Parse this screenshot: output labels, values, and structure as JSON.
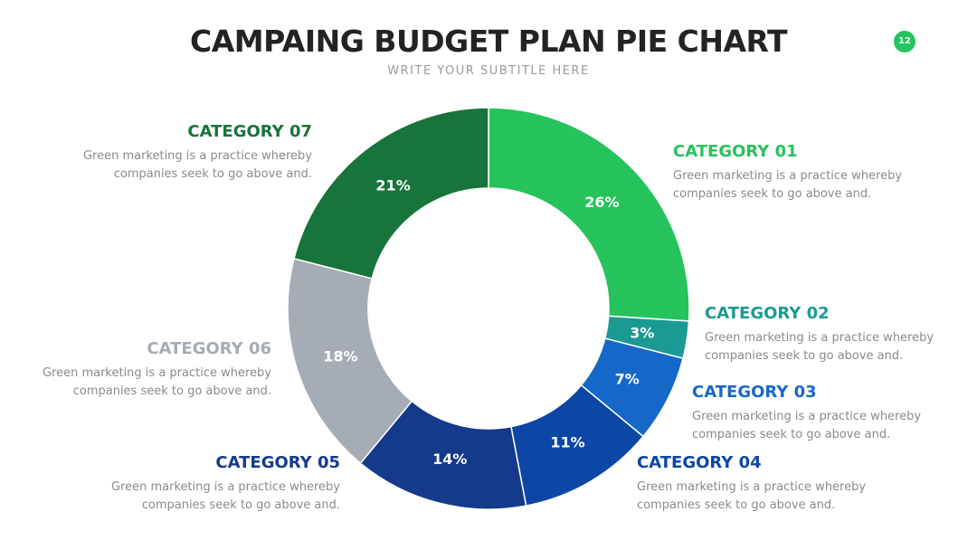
{
  "header": {
    "title": "CAMPAING BUDGET PLAN PIE CHART",
    "subtitle": "WRITE YOUR SUBTITLE HERE",
    "page_number": "12"
  },
  "chart_data": {
    "type": "pie",
    "title": "CAMPAING BUDGET PLAN PIE CHART",
    "subtitle": "WRITE YOUR SUBTITLE HERE",
    "start": "top, clockwise",
    "slices": [
      {
        "label": "CATEGORY 01",
        "value": 26,
        "display": "26%",
        "color": "#26c35c"
      },
      {
        "label": "CATEGORY 02",
        "value": 3,
        "display": "3%",
        "color": "#1b9a93"
      },
      {
        "label": "CATEGORY 03",
        "value": 7,
        "display": "7%",
        "color": "#1668c8"
      },
      {
        "label": "CATEGORY 04",
        "value": 11,
        "display": "11%",
        "color": "#0c47a6"
      },
      {
        "label": "CATEGORY 05",
        "value": 14,
        "display": "14%",
        "color": "#153a8c"
      },
      {
        "label": "CATEGORY 06",
        "value": 18,
        "display": "18%",
        "color": "#a5acb5"
      },
      {
        "label": "CATEGORY 07",
        "value": 21,
        "display": "21%",
        "color": "#17743a"
      }
    ]
  },
  "categories": [
    {
      "title": "CATEGORY 01",
      "color": "#26c35c",
      "desc1": "Green marketing is a practice whereby",
      "desc2": "companies seek to go above and."
    },
    {
      "title": "CATEGORY 02",
      "color": "#1b9a93",
      "desc1": "Green marketing is a practice whereby",
      "desc2": "companies seek to go above and."
    },
    {
      "title": "CATEGORY 03",
      "color": "#1668c8",
      "desc1": "Green marketing is a practice whereby",
      "desc2": "companies seek to go above and."
    },
    {
      "title": "CATEGORY 04",
      "color": "#0c47a6",
      "desc1": "Green marketing is a practice whereby",
      "desc2": "companies seek to go above and."
    },
    {
      "title": "CATEGORY 05",
      "color": "#153a8c",
      "desc1": "Green marketing is a practice whereby",
      "desc2": "companies seek to go above and."
    },
    {
      "title": "CATEGORY 06",
      "color": "#a5acb5",
      "desc1": "Green marketing is a practice whereby",
      "desc2": "companies seek to go above and."
    },
    {
      "title": "CATEGORY 07",
      "color": "#17743a",
      "desc1": "Green marketing is a practice whereby",
      "desc2": "companies seek to go above and."
    }
  ],
  "colors": {
    "title": "#232323",
    "subtitle": "#9a9a9a",
    "badge": "#22c55e",
    "description": "#8a8a8a"
  }
}
